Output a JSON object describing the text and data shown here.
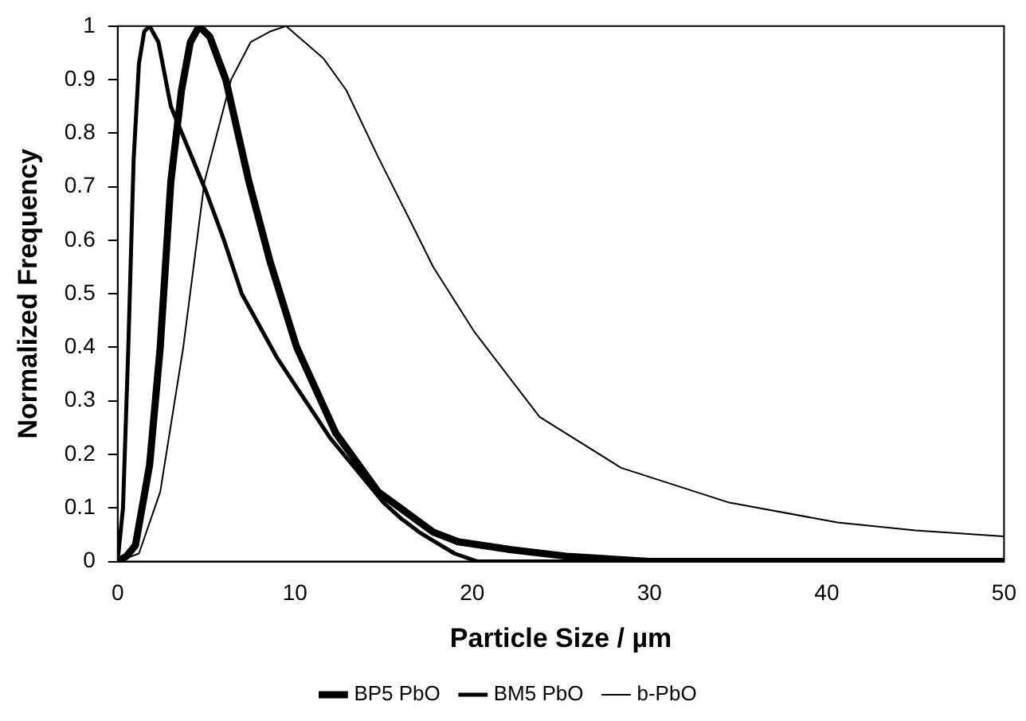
{
  "chart_data": {
    "type": "line",
    "xlabel": "Particle Size / µm",
    "ylabel": "Normalized Frequency",
    "xlim": [
      0,
      50
    ],
    "xticks": [
      0,
      10,
      20,
      30,
      40,
      50
    ],
    "ylim": [
      0,
      1
    ],
    "yticks": [
      0,
      0.1,
      0.2,
      0.3,
      0.4,
      0.5,
      0.6,
      0.7,
      0.8,
      0.9,
      1
    ],
    "grid": false,
    "legend": "bottom",
    "marker": "none",
    "line_style": "solid",
    "series": [
      {
        "name": "BP5 PbO",
        "color": "#000000",
        "x": [
          0,
          0.5,
          1,
          1.8,
          2.4,
          3,
          3.6,
          4.1,
          4.6,
          5.2,
          6.1,
          7.4,
          8.6,
          10.1,
          12.3,
          14.7,
          17.8,
          19.2,
          22.2,
          25.3,
          30,
          40,
          50
        ],
        "values": [
          0,
          0.01,
          0.03,
          0.18,
          0.4,
          0.71,
          0.88,
          0.97,
          1,
          0.98,
          0.9,
          0.71,
          0.56,
          0.4,
          0.24,
          0.13,
          0.055,
          0.037,
          0.022,
          0.01,
          0,
          0,
          0
        ]
      },
      {
        "name": "BM5 PbO",
        "color": "#000000",
        "x": [
          0,
          0.3,
          0.6,
          0.9,
          1.2,
          1.5,
          1.8,
          2.3,
          3,
          4,
          5,
          6,
          7,
          8,
          9,
          10,
          11,
          12,
          13,
          14,
          15,
          16,
          17,
          18,
          19,
          20.3,
          30,
          50
        ],
        "values": [
          0,
          0.1,
          0.4,
          0.75,
          0.93,
          0.99,
          1,
          0.97,
          0.85,
          0.77,
          0.69,
          0.6,
          0.5,
          0.44,
          0.38,
          0.33,
          0.28,
          0.23,
          0.19,
          0.15,
          0.11,
          0.08,
          0.055,
          0.035,
          0.015,
          0,
          0,
          0
        ]
      },
      {
        "name": "b-PbO",
        "color": "#000000",
        "x": [
          0,
          1.2,
          2.4,
          3.7,
          4.9,
          6.4,
          7.5,
          8.6,
          9.5,
          11.6,
          12.9,
          14.7,
          16.6,
          17.8,
          20.1,
          23.8,
          28.4,
          34.5,
          40.6,
          45,
          50
        ],
        "values": [
          0,
          0.015,
          0.13,
          0.4,
          0.71,
          0.9,
          0.97,
          0.99,
          1,
          0.94,
          0.88,
          0.755,
          0.63,
          0.55,
          0.43,
          0.27,
          0.175,
          0.11,
          0.073,
          0.058,
          0.047
        ]
      }
    ]
  }
}
